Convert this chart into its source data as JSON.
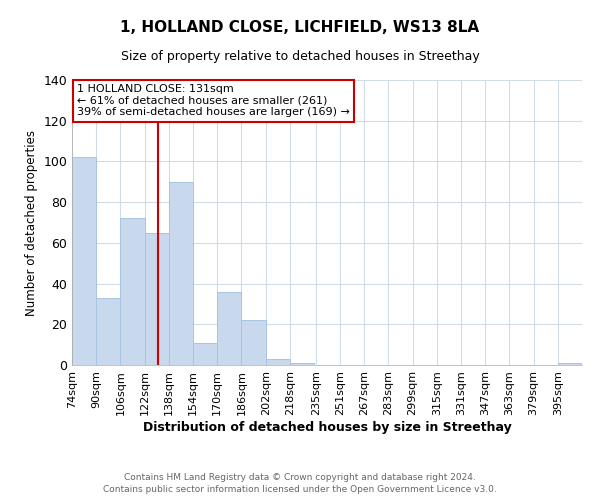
{
  "title_line1": "1, HOLLAND CLOSE, LICHFIELD, WS13 8LA",
  "title_line2": "Size of property relative to detached houses in Streethay",
  "xlabel": "Distribution of detached houses by size in Streethay",
  "ylabel": "Number of detached properties",
  "bin_edges": [
    74,
    90,
    106,
    122,
    138,
    154,
    170,
    186,
    202,
    218,
    235,
    251,
    267,
    283,
    299,
    315,
    331,
    347,
    363,
    379,
    395
  ],
  "bin_labels": [
    "74sqm",
    "90sqm",
    "106sqm",
    "122sqm",
    "138sqm",
    "154sqm",
    "170sqm",
    "186sqm",
    "202sqm",
    "218sqm",
    "235sqm",
    "251sqm",
    "267sqm",
    "283sqm",
    "299sqm",
    "315sqm",
    "331sqm",
    "347sqm",
    "363sqm",
    "379sqm",
    "395sqm"
  ],
  "counts": [
    102,
    33,
    72,
    65,
    90,
    11,
    36,
    22,
    3,
    1,
    0,
    0,
    0,
    0,
    0,
    0,
    0,
    0,
    0,
    0,
    1
  ],
  "bar_color": "#c8d9ed",
  "bar_edgecolor": "#a8c4e0",
  "redline_x": 131,
  "ylim": [
    0,
    140
  ],
  "yticks": [
    0,
    20,
    40,
    60,
    80,
    100,
    120,
    140
  ],
  "annotation_title": "1 HOLLAND CLOSE: 131sqm",
  "annotation_line1": "← 61% of detached houses are smaller (261)",
  "annotation_line2": "39% of semi-detached houses are larger (169) →",
  "annotation_box_color": "#ffffff",
  "annotation_box_edgecolor": "#cc0000",
  "footer_line1": "Contains HM Land Registry data © Crown copyright and database right 2024.",
  "footer_line2": "Contains public sector information licensed under the Open Government Licence v3.0.",
  "background_color": "#ffffff",
  "grid_color": "#d0dce8"
}
